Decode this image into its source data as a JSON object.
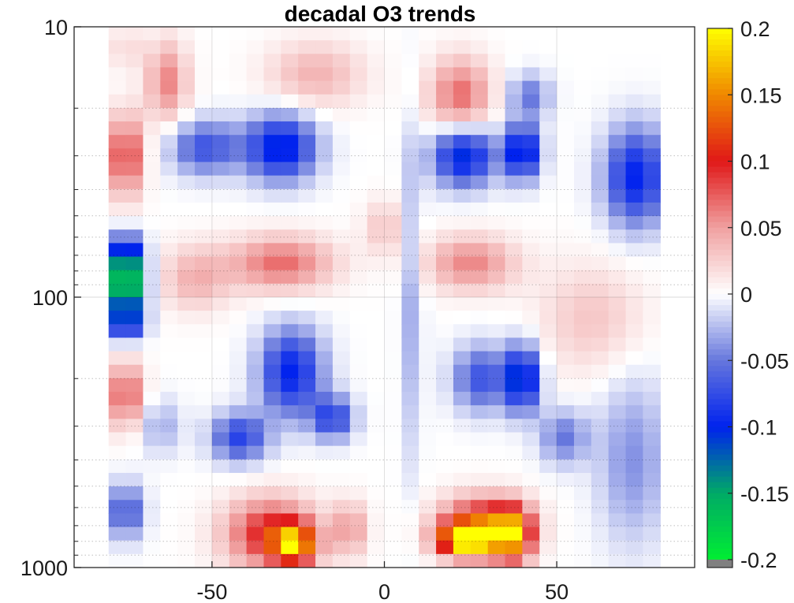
{
  "chart_data": {
    "type": "heatmap",
    "title": "decadal O3 trends",
    "xlabel": "",
    "ylabel": "",
    "xlim": [
      -90,
      90
    ],
    "ylim": [
      10,
      1000
    ],
    "yscale": "log",
    "y_reversed": true,
    "grid": true,
    "x_ticks": [
      -50,
      0,
      50
    ],
    "x_tick_labels": [
      "-50",
      "0",
      "50"
    ],
    "y_ticks": [
      10,
      100,
      1000
    ],
    "y_tick_labels": [
      "10",
      "100",
      "1000"
    ],
    "colorbar": {
      "range": [
        -0.2,
        0.2
      ],
      "ticks": [
        0.2,
        0.15,
        0.1,
        0.05,
        0,
        -0.05,
        -0.1,
        -0.15,
        -0.2
      ],
      "tick_labels": [
        "0.2",
        "0.15",
        "0.1",
        "0.05",
        "0",
        "-0.05",
        "-0.1",
        "-0.15",
        "-0.2"
      ],
      "placement": "right",
      "colormap": [
        [
          -0.2,
          "#00ee33"
        ],
        [
          -0.15,
          "#00aa66"
        ],
        [
          -0.1,
          "#0022ee"
        ],
        [
          -0.05,
          "#6677dd"
        ],
        [
          0,
          "#ffffff"
        ],
        [
          0.05,
          "#f0a0a0"
        ],
        [
          0.1,
          "#e01818"
        ],
        [
          0.15,
          "#f08800"
        ],
        [
          0.2,
          "#ffff00"
        ]
      ],
      "undercolor": "#808080"
    },
    "features": [
      {
        "lat": -75,
        "p": 30,
        "value": 0.09,
        "rlat": 5,
        "rlog": 0.15
      },
      {
        "lat": -75,
        "p": 92,
        "value": -0.19,
        "rlat": 5,
        "rlog": 0.1
      },
      {
        "lat": -75,
        "p": 70,
        "value": -0.11,
        "rlat": 5,
        "rlog": 0.08
      },
      {
        "lat": -75,
        "p": 125,
        "value": -0.1,
        "rlat": 5,
        "rlog": 0.06
      },
      {
        "lat": -75,
        "p": 230,
        "value": 0.08,
        "rlat": 5,
        "rlog": 0.12
      },
      {
        "lat": -75,
        "p": 620,
        "value": -0.07,
        "rlat": 5,
        "rlog": 0.1
      },
      {
        "lat": -75,
        "p": 12,
        "value": 0.02,
        "rlat": 5,
        "rlog": 0.08
      },
      {
        "lat": -63,
        "p": 16,
        "value": 0.06,
        "rlat": 6,
        "rlog": 0.15
      },
      {
        "lat": -20,
        "p": 15,
        "value": 0.04,
        "rlat": 14,
        "rlog": 0.12
      },
      {
        "lat": -30,
        "p": 28,
        "value": -0.11,
        "rlat": 10,
        "rlog": 0.12
      },
      {
        "lat": -52,
        "p": 28,
        "value": -0.07,
        "rlat": 10,
        "rlog": 0.1
      },
      {
        "lat": -30,
        "p": 75,
        "value": 0.07,
        "rlat": 15,
        "rlog": 0.1
      },
      {
        "lat": -55,
        "p": 85,
        "value": 0.04,
        "rlat": 10,
        "rlog": 0.12
      },
      {
        "lat": -27,
        "p": 190,
        "value": -0.1,
        "rlat": 9,
        "rlog": 0.16
      },
      {
        "lat": -15,
        "p": 280,
        "value": -0.08,
        "rlat": 6,
        "rlog": 0.08
      },
      {
        "lat": -42,
        "p": 330,
        "value": -0.08,
        "rlat": 8,
        "rlog": 0.09
      },
      {
        "lat": -65,
        "p": 300,
        "value": -0.03,
        "rlat": 6,
        "rlog": 0.1
      },
      {
        "lat": -26,
        "p": 820,
        "value": 0.14,
        "rlat": 6,
        "rlog": 0.07
      },
      {
        "lat": -33,
        "p": 750,
        "value": 0.1,
        "rlat": 13,
        "rlog": 0.13
      },
      {
        "lat": -10,
        "p": 720,
        "value": 0.05,
        "rlat": 5,
        "rlog": 0.1
      },
      {
        "lat": 22,
        "p": 18,
        "value": 0.07,
        "rlat": 9,
        "rlog": 0.14
      },
      {
        "lat": 42,
        "p": 18,
        "value": -0.05,
        "rlat": 6,
        "rlog": 0.08
      },
      {
        "lat": 23,
        "p": 30,
        "value": -0.11,
        "rlat": 9,
        "rlog": 0.11
      },
      {
        "lat": 40,
        "p": 29,
        "value": -0.12,
        "rlat": 5,
        "rlog": 0.1
      },
      {
        "lat": 73,
        "p": 36,
        "value": -0.1,
        "rlat": 9,
        "rlog": 0.18
      },
      {
        "lat": 25,
        "p": 75,
        "value": 0.06,
        "rlat": 13,
        "rlog": 0.1
      },
      {
        "lat": 60,
        "p": 120,
        "value": 0.03,
        "rlat": 15,
        "rlog": 0.2
      },
      {
        "lat": 40,
        "p": 200,
        "value": -0.12,
        "rlat": 5,
        "rlog": 0.12
      },
      {
        "lat": 28,
        "p": 200,
        "value": -0.07,
        "rlat": 8,
        "rlog": 0.12
      },
      {
        "lat": 52,
        "p": 330,
        "value": -0.05,
        "rlat": 7,
        "rlog": 0.1
      },
      {
        "lat": 72,
        "p": 400,
        "value": -0.04,
        "rlat": 10,
        "rlog": 0.3
      },
      {
        "lat": 24,
        "p": 790,
        "value": 0.2,
        "rlat": 8,
        "rlog": 0.06
      },
      {
        "lat": 37,
        "p": 760,
        "value": 0.15,
        "rlat": 6,
        "rlog": 0.1
      },
      {
        "lat": 28,
        "p": 680,
        "value": 0.1,
        "rlat": 12,
        "rlog": 0.1
      },
      {
        "lat": 8,
        "p": 100,
        "value": -0.03,
        "rlat": 3,
        "rlog": 0.6
      },
      {
        "lat": 0,
        "p": 55,
        "value": 0.03,
        "rlat": 6,
        "rlog": 0.1
      }
    ]
  }
}
